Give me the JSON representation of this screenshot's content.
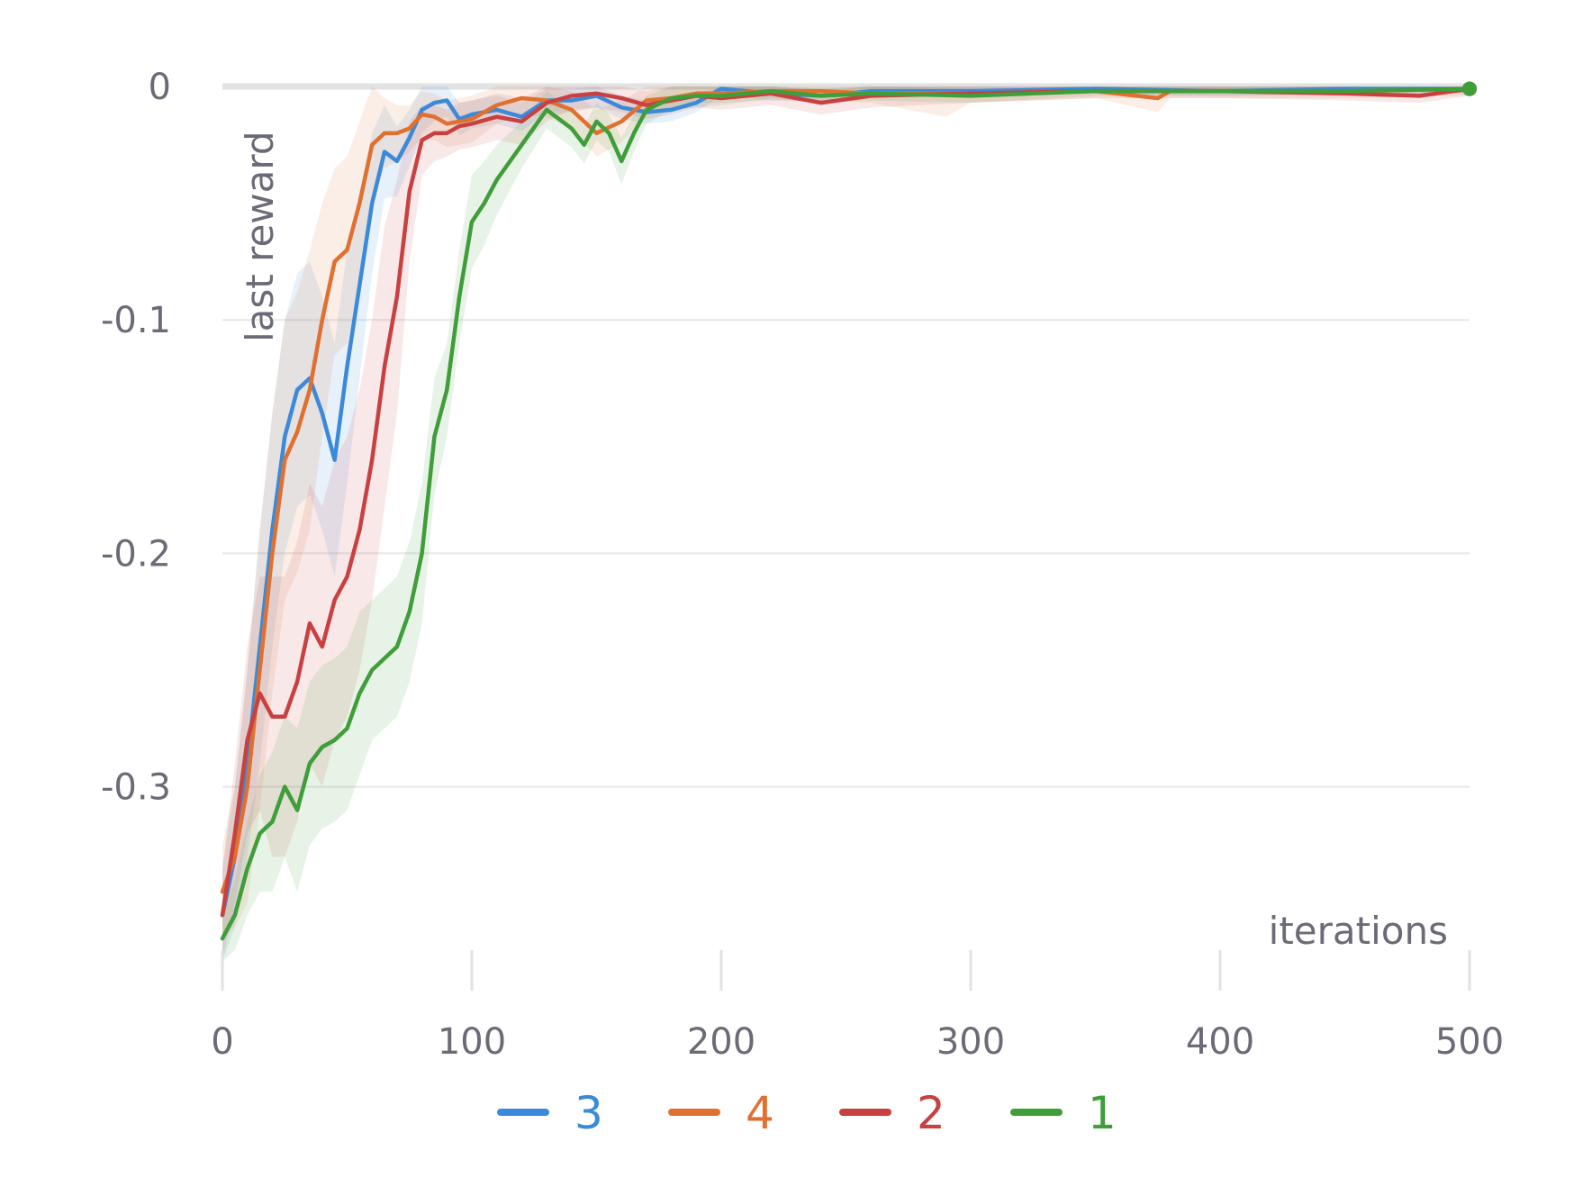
{
  "chart_data": {
    "type": "line",
    "title": "",
    "xlabel": "iterations",
    "ylabel": "last reward",
    "xlim": [
      0,
      500
    ],
    "ylim": [
      -0.37,
      0
    ],
    "x_ticks": [
      0,
      100,
      200,
      300,
      400,
      500
    ],
    "y_ticks": [
      0,
      -0.1,
      -0.2,
      -0.3
    ],
    "x_tick_labels": [
      "0",
      "100",
      "200",
      "300",
      "400",
      "500"
    ],
    "y_tick_labels": [
      "0",
      "-0.1",
      "-0.2",
      "-0.3"
    ],
    "grid": "horizontal",
    "legend_position": "bottom-center",
    "series": [
      {
        "name": "3",
        "color": "#3b8ad9",
        "x": [
          0,
          5,
          10,
          15,
          20,
          25,
          30,
          35,
          40,
          45,
          50,
          55,
          60,
          65,
          70,
          75,
          80,
          85,
          90,
          95,
          100,
          110,
          120,
          130,
          140,
          150,
          160,
          170,
          180,
          190,
          200,
          220,
          240,
          260,
          300,
          350,
          400,
          450,
          500
        ],
        "y": [
          -0.355,
          -0.33,
          -0.29,
          -0.24,
          -0.19,
          -0.15,
          -0.13,
          -0.125,
          -0.14,
          -0.16,
          -0.12,
          -0.085,
          -0.05,
          -0.028,
          -0.032,
          -0.022,
          -0.01,
          -0.007,
          -0.006,
          -0.014,
          -0.012,
          -0.01,
          -0.013,
          -0.006,
          -0.006,
          -0.004,
          -0.009,
          -0.011,
          -0.01,
          -0.007,
          -0.001,
          -0.003,
          -0.004,
          -0.002,
          -0.002,
          -0.001,
          -0.002,
          -0.001,
          -0.001
        ],
        "band": [
          0.02,
          0.03,
          0.04,
          0.05,
          0.05,
          0.05,
          0.05,
          0.05,
          0.05,
          0.05,
          0.05,
          0.04,
          0.03,
          0.02,
          0.015,
          0.012,
          0.01,
          0.008,
          0.007,
          0.007,
          0.006,
          0.006,
          0.006,
          0.005,
          0.005,
          0.005,
          0.005,
          0.005,
          0.005,
          0.004,
          0.003,
          0.003,
          0.003,
          0.002,
          0.002,
          0.002,
          0.002,
          0.002,
          0.002
        ]
      },
      {
        "name": "4",
        "color": "#e0702f",
        "x": [
          0,
          5,
          10,
          15,
          20,
          25,
          30,
          35,
          40,
          45,
          50,
          55,
          60,
          65,
          70,
          75,
          80,
          85,
          90,
          95,
          100,
          110,
          120,
          130,
          140,
          150,
          160,
          170,
          180,
          190,
          200,
          220,
          240,
          260,
          290,
          300,
          350,
          375,
          380,
          400,
          450,
          500
        ],
        "y": [
          -0.345,
          -0.33,
          -0.3,
          -0.25,
          -0.2,
          -0.16,
          -0.148,
          -0.13,
          -0.1,
          -0.075,
          -0.07,
          -0.05,
          -0.025,
          -0.02,
          -0.02,
          -0.018,
          -0.012,
          -0.013,
          -0.016,
          -0.015,
          -0.014,
          -0.008,
          -0.005,
          -0.006,
          -0.01,
          -0.02,
          -0.015,
          -0.006,
          -0.005,
          -0.003,
          -0.003,
          -0.002,
          -0.002,
          -0.003,
          -0.003,
          -0.003,
          -0.002,
          -0.005,
          -0.002,
          -0.002,
          -0.002,
          -0.001
        ],
        "band": [
          0.02,
          0.03,
          0.05,
          0.06,
          0.06,
          0.06,
          0.06,
          0.06,
          0.05,
          0.04,
          0.04,
          0.035,
          0.025,
          0.015,
          0.012,
          0.01,
          0.01,
          0.01,
          0.01,
          0.01,
          0.01,
          0.008,
          0.007,
          0.007,
          0.008,
          0.01,
          0.009,
          0.006,
          0.005,
          0.004,
          0.004,
          0.004,
          0.004,
          0.004,
          0.01,
          0.004,
          0.003,
          0.006,
          0.003,
          0.003,
          0.003,
          0.003
        ]
      },
      {
        "name": "2",
        "color": "#c94040",
        "x": [
          0,
          5,
          10,
          15,
          20,
          25,
          30,
          35,
          40,
          45,
          50,
          55,
          60,
          65,
          70,
          75,
          80,
          85,
          90,
          95,
          100,
          110,
          120,
          130,
          140,
          150,
          160,
          170,
          180,
          190,
          200,
          220,
          240,
          260,
          300,
          350,
          400,
          450,
          480,
          500
        ],
        "y": [
          -0.355,
          -0.32,
          -0.28,
          -0.26,
          -0.27,
          -0.27,
          -0.255,
          -0.23,
          -0.24,
          -0.22,
          -0.21,
          -0.19,
          -0.16,
          -0.12,
          -0.09,
          -0.045,
          -0.023,
          -0.02,
          -0.02,
          -0.017,
          -0.016,
          -0.013,
          -0.015,
          -0.007,
          -0.004,
          -0.003,
          -0.005,
          -0.008,
          -0.006,
          -0.004,
          -0.005,
          -0.003,
          -0.007,
          -0.004,
          -0.003,
          -0.002,
          -0.002,
          -0.003,
          -0.004,
          -0.001
        ],
        "band": [
          0.02,
          0.03,
          0.04,
          0.05,
          0.06,
          0.06,
          0.06,
          0.06,
          0.06,
          0.06,
          0.06,
          0.06,
          0.06,
          0.06,
          0.05,
          0.03,
          0.015,
          0.012,
          0.01,
          0.01,
          0.01,
          0.01,
          0.01,
          0.008,
          0.006,
          0.006,
          0.006,
          0.006,
          0.006,
          0.005,
          0.005,
          0.005,
          0.005,
          0.005,
          0.004,
          0.003,
          0.003,
          0.003,
          0.003,
          0.003
        ]
      },
      {
        "name": "1",
        "color": "#3f9e3a",
        "x": [
          0,
          5,
          10,
          15,
          20,
          25,
          30,
          35,
          40,
          45,
          50,
          55,
          60,
          65,
          70,
          75,
          80,
          85,
          90,
          95,
          100,
          105,
          110,
          120,
          130,
          140,
          145,
          150,
          155,
          160,
          165,
          170,
          180,
          190,
          200,
          220,
          240,
          260,
          300,
          350,
          400,
          450,
          500
        ],
        "y": [
          -0.365,
          -0.355,
          -0.335,
          -0.32,
          -0.315,
          -0.3,
          -0.31,
          -0.29,
          -0.283,
          -0.28,
          -0.275,
          -0.26,
          -0.25,
          -0.245,
          -0.24,
          -0.225,
          -0.2,
          -0.15,
          -0.13,
          -0.09,
          -0.058,
          -0.05,
          -0.04,
          -0.025,
          -0.01,
          -0.018,
          -0.025,
          -0.015,
          -0.02,
          -0.032,
          -0.02,
          -0.01,
          -0.005,
          -0.004,
          -0.004,
          -0.002,
          -0.004,
          -0.003,
          -0.004,
          -0.002,
          -0.002,
          -0.002,
          -0.001
        ],
        "band": [
          0.01,
          0.015,
          0.02,
          0.025,
          0.03,
          0.03,
          0.035,
          0.035,
          0.035,
          0.035,
          0.035,
          0.035,
          0.03,
          0.03,
          0.03,
          0.03,
          0.03,
          0.025,
          0.02,
          0.02,
          0.02,
          0.018,
          0.015,
          0.01,
          0.008,
          0.008,
          0.008,
          0.008,
          0.008,
          0.01,
          0.008,
          0.006,
          0.005,
          0.005,
          0.004,
          0.003,
          0.003,
          0.003,
          0.003,
          0.002,
          0.002,
          0.002,
          0.002
        ]
      }
    ],
    "legend": [
      {
        "label": "3",
        "color": "#3b8ad9"
      },
      {
        "label": "4",
        "color": "#e0702f"
      },
      {
        "label": "2",
        "color": "#c94040"
      },
      {
        "label": "1",
        "color": "#3f9e3a"
      }
    ]
  }
}
